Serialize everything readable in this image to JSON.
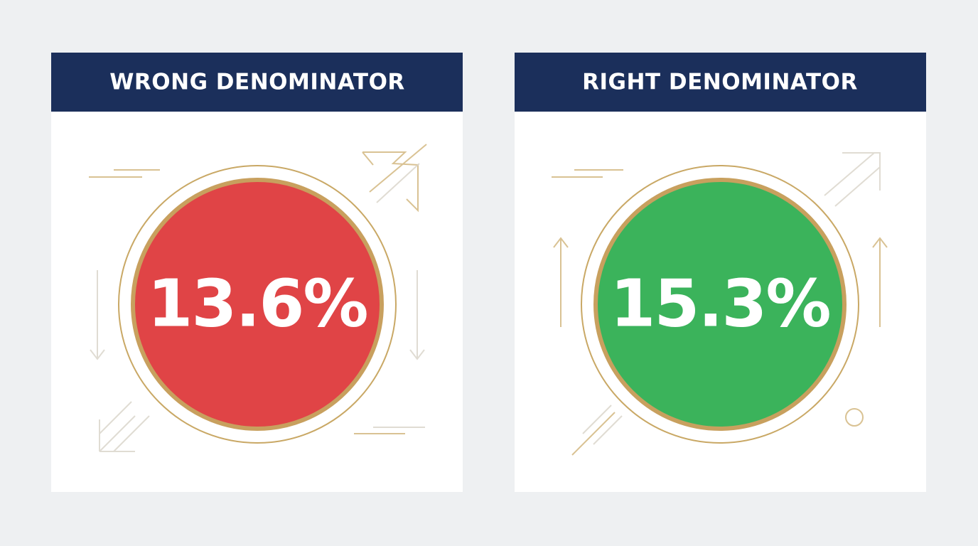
{
  "cards": [
    {
      "title": "WRONG DENOMINATOR",
      "value": "13.6%"
    },
    {
      "title": "RIGHT DENOMINATOR",
      "value": "15.3%"
    }
  ]
}
